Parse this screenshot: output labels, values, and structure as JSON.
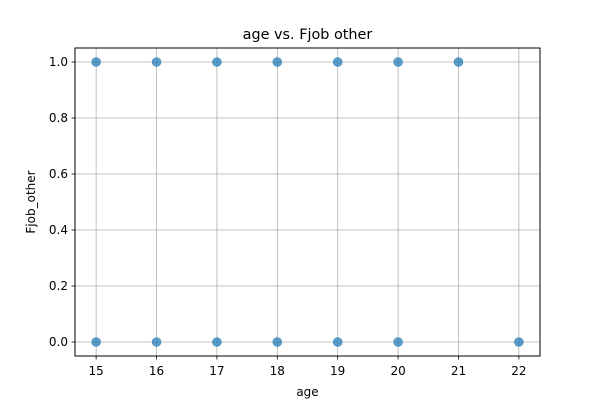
{
  "chart_data": {
    "type": "scatter",
    "title": "age vs. Fjob other",
    "xlabel": "age",
    "ylabel": "Fjob_other",
    "xlim": [
      14.65,
      22.35
    ],
    "ylim": [
      -0.05,
      1.05
    ],
    "xticks": [
      15,
      16,
      17,
      18,
      19,
      20,
      21,
      22
    ],
    "yticks": [
      0.0,
      0.2,
      0.4,
      0.6,
      0.8,
      1.0
    ],
    "grid": true,
    "point_color": "#1f77b4",
    "series": [
      {
        "points": [
          {
            "x": 15,
            "y": 1.0
          },
          {
            "x": 16,
            "y": 1.0
          },
          {
            "x": 17,
            "y": 1.0
          },
          {
            "x": 18,
            "y": 1.0
          },
          {
            "x": 19,
            "y": 1.0
          },
          {
            "x": 20,
            "y": 1.0
          },
          {
            "x": 21,
            "y": 1.0
          },
          {
            "x": 15,
            "y": 0.0
          },
          {
            "x": 16,
            "y": 0.0
          },
          {
            "x": 17,
            "y": 0.0
          },
          {
            "x": 18,
            "y": 0.0
          },
          {
            "x": 19,
            "y": 0.0
          },
          {
            "x": 20,
            "y": 0.0
          },
          {
            "x": 22,
            "y": 0.0
          }
        ]
      }
    ]
  }
}
